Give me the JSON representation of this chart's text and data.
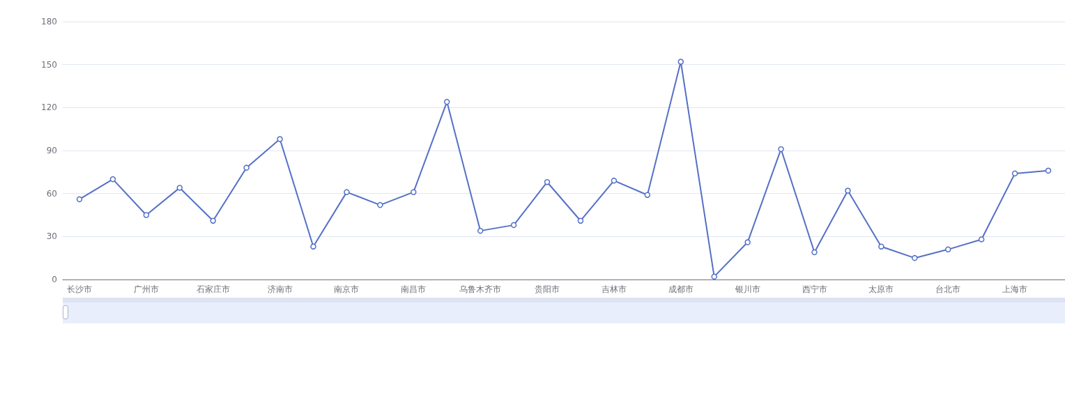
{
  "chart_data": {
    "type": "line",
    "categories": [
      "长沙市",
      null,
      "广州市",
      null,
      "石家庄市",
      null,
      "济南市",
      null,
      "南京市",
      null,
      "南昌市",
      null,
      "乌鲁木齐市",
      null,
      "贵阳市",
      null,
      "吉林市",
      null,
      "成都市",
      null,
      "银川市",
      null,
      "西宁市",
      null,
      "太原市",
      null,
      "台北市",
      null,
      "上海市",
      null
    ],
    "series": [
      {
        "color": "#5470c6",
        "values": [
          56,
          70,
          45,
          64,
          41,
          78,
          98,
          23,
          61,
          52,
          61,
          124,
          34,
          38,
          68,
          41,
          69,
          59,
          152,
          2,
          26,
          91,
          19,
          62,
          23,
          15,
          21,
          28,
          74,
          76
        ]
      }
    ],
    "ylim": [
      0,
      180
    ],
    "yticks": [
      0,
      30,
      60,
      90,
      120,
      150,
      180
    ],
    "grid": "y",
    "marker": "circle",
    "line_style": "solid"
  }
}
